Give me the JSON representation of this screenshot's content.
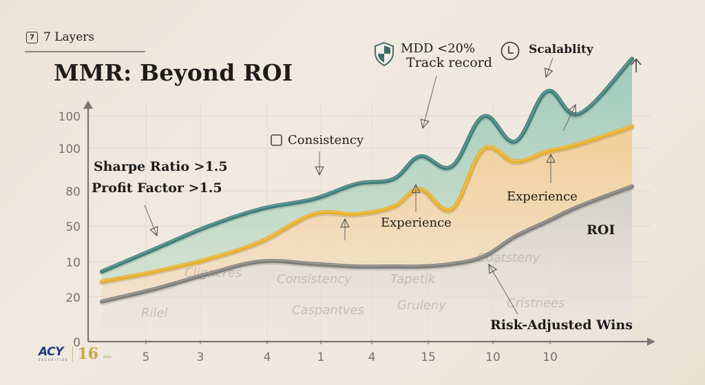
{
  "header": {
    "badge_number": "7",
    "badge_label": "7 Layers",
    "title": "MMR: Beyond ROI"
  },
  "brand": {
    "logo_text": "ACY",
    "logo_subtext": "SECURITIES",
    "anniversary": "16",
    "anniversary_suffix": "YEARS",
    "logo_color": "#1d3a7a",
    "anniversary_color": "#c8a54a"
  },
  "annotations": {
    "sharpe": "Sharpe Ratio >1.5",
    "profit_factor": "Profit Factor >1.5",
    "consistency": "Consistency",
    "mdd": "MDD <20%",
    "track_record": "Track record",
    "scalability": "Scalablity",
    "experience_1": "Experience",
    "experience_2": "Experience",
    "roi": "ROI",
    "risk_adjusted": "Risk-Adjusted Wins"
  },
  "handwritten_labels": [
    "Rilel",
    "Cligncres",
    "Consistency",
    "Caspantves",
    "Tapetik",
    "Gruleny",
    "Coatsteny",
    "Cristnees"
  ],
  "chart_data": {
    "type": "area",
    "title": "MMR: Beyond ROI",
    "xlabel": "",
    "ylabel": "",
    "y_tick_labels": [
      "0",
      "20",
      "10",
      "50",
      "80",
      "100",
      "100"
    ],
    "x_tick_labels": [
      "5",
      "3",
      "4",
      "1",
      "4",
      "15",
      "10",
      "10"
    ],
    "y_range": [
      0,
      100
    ],
    "x_range": [
      0,
      10
    ],
    "grid": true,
    "legend": "none",
    "x": [
      0,
      1,
      2,
      3,
      4,
      4.8,
      5.5,
      6,
      6.6,
      7.2,
      7.8,
      8.4,
      9,
      10
    ],
    "series": [
      {
        "name": "Scalability / Track record (top layer)",
        "color": "#3f7f7a",
        "fill": "#a9d2c5",
        "values": [
          28,
          37,
          46,
          53,
          57,
          63,
          65,
          74,
          70,
          90,
          80,
          100,
          91,
          113
        ]
      },
      {
        "name": "Experience (middle layer)",
        "color": "#e6b02e",
        "fill": "#f3d3a0",
        "values": [
          24,
          28,
          33,
          40,
          51,
          51,
          54,
          61,
          53,
          77,
          72,
          76,
          79,
          86
        ]
      },
      {
        "name": "ROI / Risk-Adjusted Wins (base layer)",
        "color": "#7f7f7b",
        "fill": "#d9d6d2",
        "values": [
          16,
          21,
          27,
          32,
          31,
          30,
          30,
          30,
          31,
          34,
          42,
          48,
          54,
          62
        ]
      }
    ]
  }
}
